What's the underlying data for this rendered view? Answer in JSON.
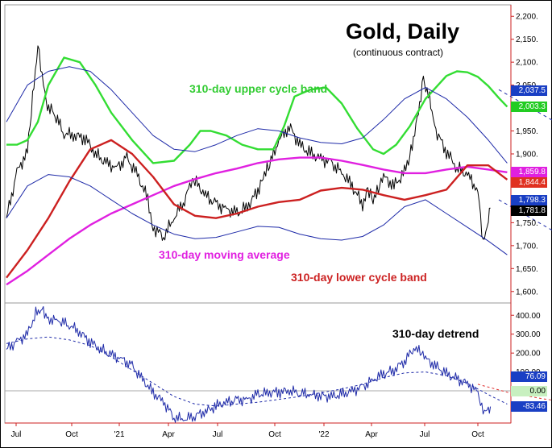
{
  "chart_data": [
    {
      "type": "line",
      "title": "Gold, Daily",
      "subtitle": "(continuous contract)",
      "x_axis": {
        "tick_labels": [
          "Jul",
          "Oct",
          "'21",
          "Apr",
          "Jul",
          "Oct",
          "'22",
          "Apr",
          "Jul",
          "Oct"
        ]
      },
      "y_axis": {
        "tick_labels": [
          "2,200.",
          "2,150.",
          "2,100.",
          "2,050.",
          "2,000.",
          "1,950.",
          "1,900.",
          "1,850.",
          "1,800.",
          "1,750.",
          "1,700.",
          "1,650.",
          "1,600."
        ],
        "ylim": [
          1575,
          2225
        ]
      },
      "annotations": [
        "310-day upper cycle band",
        "310-day moving average",
        "310-day lower cycle band"
      ],
      "value_boxes": [
        {
          "text": "2,037.5",
          "value": 2037.5,
          "bg": "#1a3fc4",
          "fg": "#ffffff"
        },
        {
          "text": "2,003.3",
          "value": 2003.3,
          "bg": "#22cc22",
          "fg": "#ffffff"
        },
        {
          "text": "1,859.8",
          "value": 1859.8,
          "bg": "#e020e0",
          "fg": "#ffffff"
        },
        {
          "text": "1,844.4",
          "value": 1844.4,
          "bg": "#e03020",
          "fg": "#ffffff"
        },
        {
          "text": "1,798.3",
          "value": 1798.3,
          "bg": "#1a3fc4",
          "fg": "#ffffff"
        },
        {
          "text": "1,781.8",
          "value": 1781.8,
          "bg": "#000000",
          "fg": "#ffffff"
        }
      ],
      "series": [
        {
          "role": "price",
          "color": "#000000",
          "x": [
            0,
            10,
            20,
            25,
            30,
            38,
            45,
            55,
            65,
            75,
            85,
            95,
            105,
            115,
            125,
            135,
            140,
            150,
            160,
            170,
            175,
            180,
            190,
            200,
            210,
            220,
            230,
            240,
            245,
            250,
            260,
            270,
            280,
            290,
            300,
            310,
            320,
            330,
            340,
            345,
            350,
            355,
            360,
            370,
            380,
            385,
            392,
            398,
            405,
            410,
            420,
            430,
            440,
            450,
            455,
            460,
            462
          ],
          "y": [
            1760,
            1860,
            1905,
            2020,
            2140,
            2010,
            1990,
            1945,
            1940,
            1935,
            1900,
            1880,
            1870,
            1890,
            1855,
            1800,
            1740,
            1720,
            1760,
            1800,
            1830,
            1840,
            1810,
            1790,
            1780,
            1770,
            1785,
            1820,
            1855,
            1870,
            1930,
            1960,
            1920,
            1900,
            1890,
            1880,
            1860,
            1830,
            1790,
            1825,
            1800,
            1820,
            1850,
            1830,
            1860,
            1895,
            1975,
            2065,
            2010,
            1950,
            1905,
            1870,
            1855,
            1820,
            1700,
            1755,
            1782
          ]
        },
        {
          "role": "310-day upper cycle band",
          "color": "#33dd33",
          "x": [
            0,
            10,
            20,
            30,
            40,
            55,
            70,
            85,
            100,
            120,
            140,
            160,
            175,
            185,
            195,
            210,
            225,
            240,
            255,
            265,
            275,
            290,
            305,
            320,
            335,
            350,
            360,
            372,
            385,
            400,
            420,
            430,
            440,
            450,
            460,
            470,
            478
          ],
          "y": [
            1920,
            1920,
            1930,
            1970,
            2050,
            2110,
            2100,
            2050,
            1990,
            1930,
            1880,
            1885,
            1920,
            1950,
            1950,
            1940,
            1920,
            1910,
            1910,
            1960,
            2025,
            2040,
            2045,
            2010,
            1955,
            1910,
            1900,
            1920,
            1960,
            2020,
            2070,
            2080,
            2078,
            2068,
            2048,
            2022,
            2003
          ]
        },
        {
          "role": "310-day moving average",
          "color": "#e020e0",
          "x": [
            0,
            20,
            40,
            60,
            80,
            100,
            120,
            140,
            160,
            180,
            200,
            220,
            240,
            260,
            280,
            300,
            320,
            340,
            360,
            380,
            400,
            420,
            440,
            460,
            478
          ],
          "y": [
            1615,
            1645,
            1680,
            1715,
            1745,
            1770,
            1790,
            1810,
            1830,
            1845,
            1858,
            1868,
            1880,
            1888,
            1892,
            1892,
            1885,
            1876,
            1866,
            1858,
            1858,
            1866,
            1872,
            1866,
            1860
          ]
        },
        {
          "role": "310-day lower cycle band",
          "color": "#cc2020",
          "x": [
            0,
            20,
            40,
            60,
            80,
            100,
            120,
            140,
            160,
            180,
            200,
            220,
            240,
            260,
            280,
            300,
            320,
            340,
            360,
            380,
            400,
            420,
            440,
            460,
            478
          ],
          "y": [
            1630,
            1690,
            1760,
            1840,
            1910,
            1930,
            1900,
            1850,
            1790,
            1765,
            1760,
            1770,
            1785,
            1795,
            1800,
            1820,
            1826,
            1822,
            1810,
            1800,
            1810,
            1822,
            1875,
            1875,
            1844
          ]
        },
        {
          "role": "outer cycle band (upper)",
          "color": "#1e2aa8",
          "x": [
            0,
            20,
            40,
            60,
            80,
            100,
            120,
            140,
            160,
            180,
            200,
            220,
            240,
            260,
            280,
            300,
            320,
            340,
            360,
            380,
            400,
            420,
            440,
            460,
            478
          ],
          "y": [
            1970,
            2050,
            2080,
            2090,
            2080,
            2040,
            1990,
            1940,
            1910,
            1905,
            1920,
            1940,
            1955,
            1950,
            1935,
            1925,
            1922,
            1935,
            1975,
            2020,
            2045,
            2020,
            1980,
            1930,
            1880
          ]
        },
        {
          "role": "outer cycle band (lower)",
          "color": "#1e2aa8",
          "x": [
            0,
            20,
            40,
            60,
            80,
            100,
            120,
            140,
            160,
            180,
            200,
            220,
            240,
            260,
            280,
            300,
            320,
            340,
            360,
            380,
            400,
            420,
            440,
            460,
            478
          ],
          "y": [
            1760,
            1830,
            1855,
            1850,
            1830,
            1800,
            1770,
            1745,
            1725,
            1715,
            1718,
            1730,
            1742,
            1740,
            1725,
            1715,
            1712,
            1720,
            1745,
            1785,
            1800,
            1770,
            1740,
            1710,
            1680
          ]
        }
      ]
    },
    {
      "type": "line",
      "title": "310-day detrend",
      "y_axis": {
        "tick_labels": [
          "400.00",
          "300.00",
          "200.00",
          "100.00",
          "0.00"
        ],
        "ylim": [
          -170,
          465
        ]
      },
      "value_boxes": [
        {
          "text": "76.09",
          "value": 76.09,
          "bg": "#1a3fc4",
          "fg": "#ffffff"
        },
        {
          "text": "0.00",
          "value": 0,
          "bg": "#c8f0c0",
          "fg": "#000000"
        },
        {
          "text": "-83.46",
          "value": -83.46,
          "bg": "#1a3fc4",
          "fg": "#ffffff"
        }
      ],
      "series": [
        {
          "role": "detrend",
          "color": "#1e2aa8",
          "x": [
            0,
            10,
            20,
            28,
            34,
            40,
            50,
            60,
            70,
            80,
            90,
            100,
            110,
            120,
            130,
            140,
            150,
            160,
            170,
            180,
            190,
            200,
            210,
            220,
            230,
            240,
            250,
            260,
            270,
            280,
            290,
            300,
            310,
            320,
            330,
            340,
            350,
            360,
            370,
            380,
            390,
            395,
            400,
            410,
            420,
            430,
            440,
            450,
            455,
            460,
            462
          ],
          "y": [
            220,
            260,
            300,
            410,
            440,
            380,
            370,
            350,
            310,
            260,
            220,
            190,
            170,
            130,
            60,
            -10,
            -60,
            -140,
            -150,
            -130,
            -110,
            -80,
            -60,
            -50,
            -45,
            -20,
            -10,
            -5,
            0,
            -10,
            -20,
            -25,
            -30,
            -20,
            0,
            20,
            60,
            90,
            110,
            160,
            230,
            200,
            170,
            130,
            90,
            60,
            40,
            -10,
            -100,
            -95,
            -83
          ]
        },
        {
          "role": "detrend smooth",
          "color": "#1e2aa8",
          "dashed": true,
          "x": [
            0,
            20,
            40,
            60,
            80,
            100,
            120,
            140,
            160,
            180,
            200,
            220,
            240,
            260,
            280,
            300,
            320,
            340,
            360,
            380,
            400,
            420,
            440,
            460,
            478
          ],
          "y": [
            250,
            275,
            285,
            270,
            240,
            180,
            110,
            40,
            -30,
            -70,
            -80,
            -70,
            -60,
            -45,
            -30,
            -10,
            10,
            35,
            70,
            95,
            100,
            80,
            40,
            -20,
            -70
          ]
        },
        {
          "role": "detrend projection",
          "color": "#e03030",
          "dashed": true,
          "x": [
            450,
            460,
            470,
            480,
            490,
            500,
            510,
            520,
            530,
            540,
            550,
            560,
            570,
            580,
            590,
            600,
            610,
            620
          ],
          "y": [
            35,
            20,
            5,
            -10,
            -20,
            -30,
            -40,
            -48,
            -55,
            -62,
            -68,
            -72,
            -75,
            -76,
            -77,
            -77,
            -76,
            -74
          ]
        }
      ]
    }
  ]
}
